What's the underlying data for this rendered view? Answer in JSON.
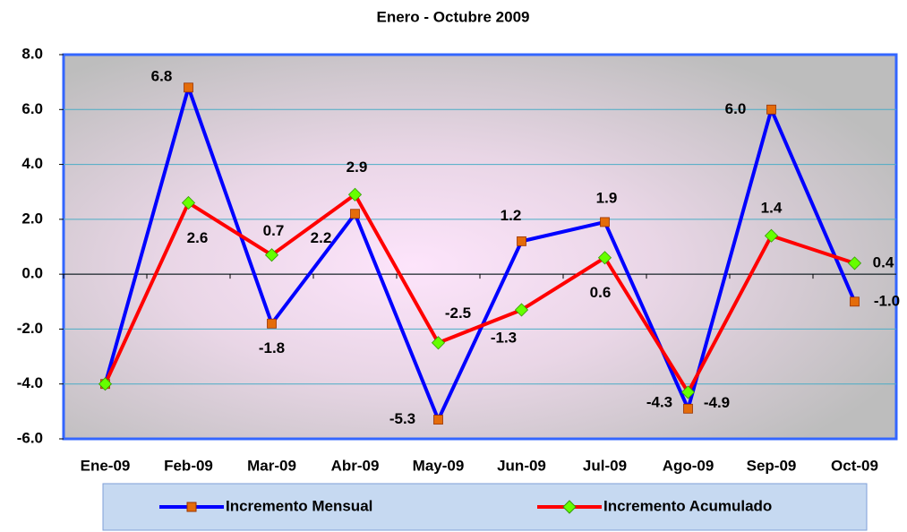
{
  "chart_data": {
    "type": "line",
    "title": "Enero - Octubre 2009",
    "categories": [
      "Ene-09",
      "Feb-09",
      "Mar-09",
      "Abr-09",
      "May-09",
      "Jun-09",
      "Jul-09",
      "Ago-09",
      "Sep-09",
      "Oct-09"
    ],
    "series": [
      {
        "name": "Incremento Mensual",
        "color": "#0000ff",
        "marker_color": "#e46c0a",
        "values": [
          -4.0,
          6.8,
          -1.8,
          2.2,
          -5.3,
          1.2,
          1.9,
          -4.9,
          6.0,
          -1.0
        ],
        "value_labels": [
          null,
          "6.8",
          "-1.8",
          "2.2",
          "-5.3",
          "1.2",
          "1.9",
          "-4.9",
          "6.0",
          "-1.0"
        ]
      },
      {
        "name": "Incremento Acumulado",
        "color": "#ff0000",
        "marker_color": "#66ff00",
        "values": [
          -4.0,
          2.6,
          0.7,
          2.9,
          -2.5,
          -1.3,
          0.6,
          -4.3,
          1.4,
          0.4
        ],
        "value_labels": [
          null,
          "2.6",
          "0.7",
          "2.9",
          "-2.5",
          "-1.3",
          "0.6",
          "-4.3",
          "1.4",
          "0.4"
        ]
      }
    ],
    "ylim": [
      -6,
      8
    ],
    "yticks": [
      {
        "value": -6,
        "label": "-6.0"
      },
      {
        "value": -4,
        "label": "-4.0"
      },
      {
        "value": -2,
        "label": "-2.0"
      },
      {
        "value": 0,
        "label": "0.0"
      },
      {
        "value": 2,
        "label": "2.0"
      },
      {
        "value": 4,
        "label": "4.0"
      },
      {
        "value": 6,
        "label": "6.0"
      },
      {
        "value": 8,
        "label": "8.0"
      }
    ],
    "grid": true,
    "legend": "bottom"
  }
}
